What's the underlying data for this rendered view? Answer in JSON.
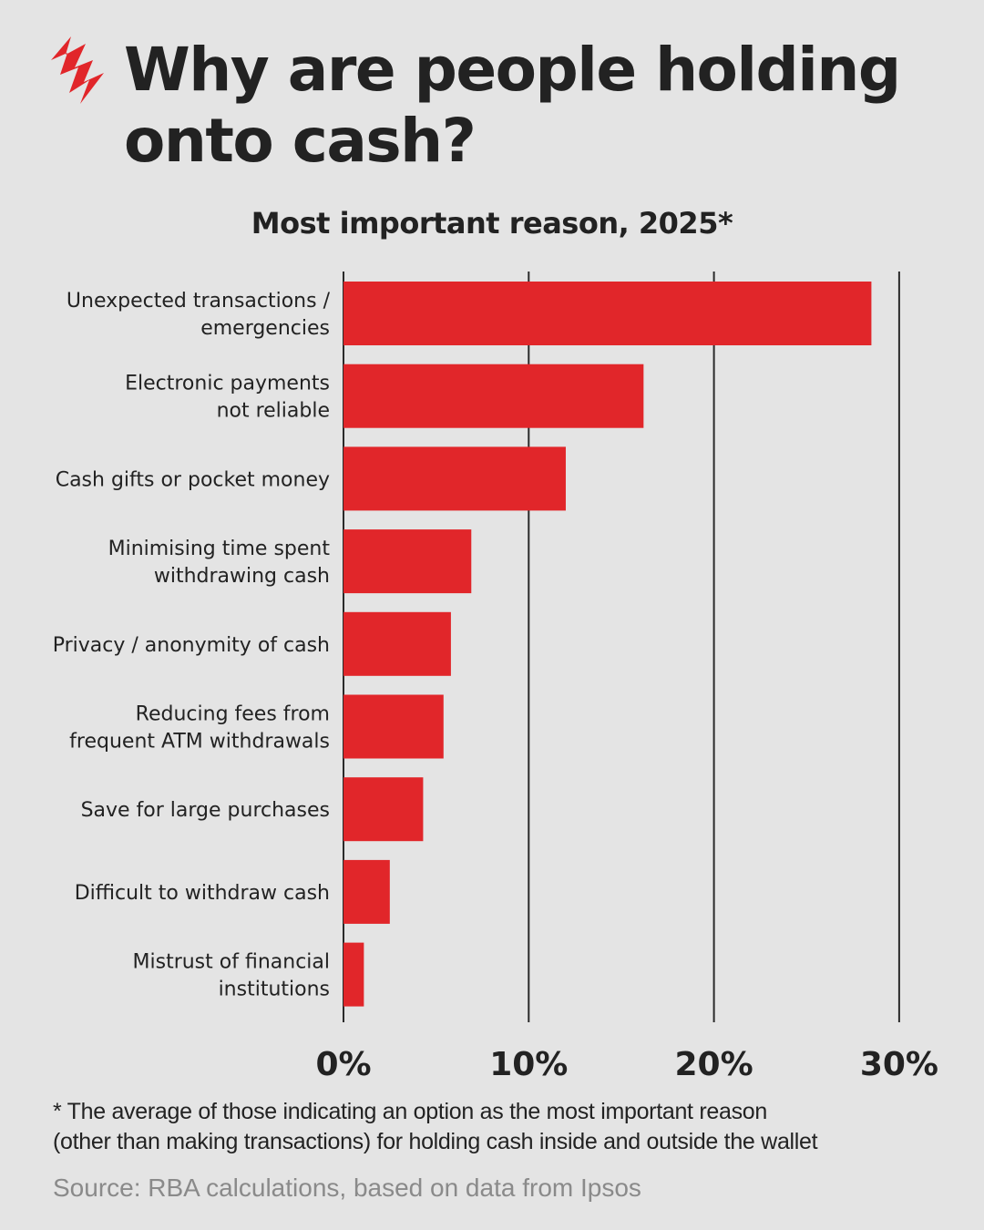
{
  "brand": {
    "accent": "#e1262a",
    "logo_icon": "sbs-logo-icon"
  },
  "header": {
    "title_line1": "Why are people holding",
    "title_line2": "onto cash?",
    "subtitle": "Most important reason, 2025*"
  },
  "chart_data": {
    "type": "bar",
    "orientation": "horizontal",
    "title": "Why are people holding onto cash?",
    "subtitle": "Most important reason, 2025*",
    "categories": [
      [
        "Unexpected transactions /",
        "emergencies"
      ],
      [
        "Electronic payments",
        "not reliable"
      ],
      [
        "Cash gifts or pocket money"
      ],
      [
        "Minimising time spent",
        "withdrawing cash"
      ],
      [
        "Privacy / anonymity of cash"
      ],
      [
        "Reducing fees from",
        "frequent ATM withdrawals"
      ],
      [
        "Save for large purchases"
      ],
      [
        "Difficult to withdraw cash"
      ],
      [
        "Mistrust of financial",
        "institutions"
      ]
    ],
    "values": [
      28.5,
      16.2,
      12.0,
      6.9,
      5.8,
      5.4,
      4.3,
      2.5,
      1.1
    ],
    "xlim": [
      0,
      30
    ],
    "x_ticks": [
      "0%",
      "10%",
      "20%",
      "30%"
    ],
    "x_tick_values": [
      0,
      10,
      20,
      30
    ],
    "grid": true,
    "bar_color": "#e1262a"
  },
  "footnote": {
    "line1": "* The average of those indicating an option as the most important reason",
    "line2": "(other than making transactions) for holding cash inside and outside the wallet"
  },
  "source": "Source: RBA calculations, based on data from Ipsos"
}
